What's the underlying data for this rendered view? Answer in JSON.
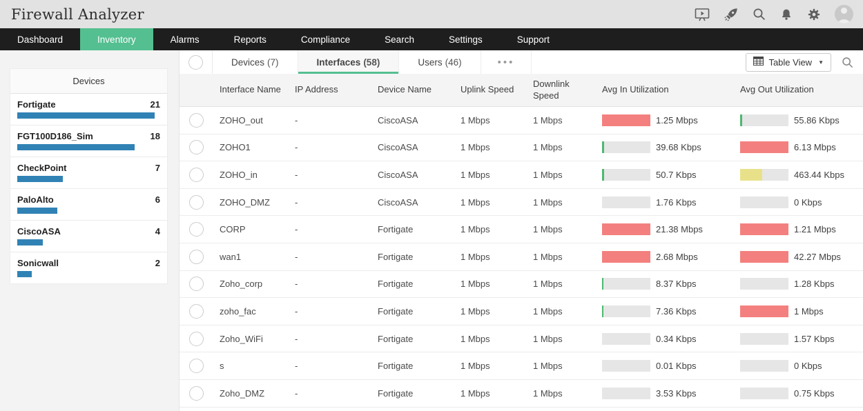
{
  "app": {
    "title": "Firewall Analyzer"
  },
  "topbar": {
    "icons": [
      "presentation",
      "rocket",
      "search",
      "bell",
      "gear"
    ],
    "avatar": "user-avatar"
  },
  "nav": {
    "items": [
      {
        "label": "Dashboard",
        "active": false
      },
      {
        "label": "Inventory",
        "active": true
      },
      {
        "label": "Alarms",
        "active": false
      },
      {
        "label": "Reports",
        "active": false
      },
      {
        "label": "Compliance",
        "active": false
      },
      {
        "label": "Search",
        "active": false
      },
      {
        "label": "Settings",
        "active": false
      },
      {
        "label": "Support",
        "active": false
      }
    ]
  },
  "sidebar": {
    "title": "Devices",
    "max_count": 21,
    "items": [
      {
        "name": "Fortigate",
        "count": "21",
        "pct": 96
      },
      {
        "name": "FGT100D186_Sim",
        "count": "18",
        "pct": 82
      },
      {
        "name": "CheckPoint",
        "count": "7",
        "pct": 32
      },
      {
        "name": "PaloAlto",
        "count": "6",
        "pct": 28
      },
      {
        "name": "CiscoASA",
        "count": "4",
        "pct": 18
      },
      {
        "name": "Sonicwall",
        "count": "2",
        "pct": 10
      }
    ]
  },
  "tabs": {
    "items": [
      {
        "label": "Devices",
        "count": "(7)",
        "active": false
      },
      {
        "label": "Interfaces",
        "count": "(58)",
        "active": true
      },
      {
        "label": "Users",
        "count": "(46)",
        "active": false
      }
    ],
    "more_label": "•••"
  },
  "toolbar": {
    "view_label": "Table View"
  },
  "table": {
    "columns": [
      "Interface Name",
      "IP Address",
      "Device Name",
      "Uplink Speed",
      "Downlink Speed",
      "Avg In Utilization",
      "Avg Out Utilization"
    ],
    "rows": [
      {
        "interface": "ZOHO_out",
        "ip": "-",
        "device": "CiscoASA",
        "uplink": "1 Mbps",
        "downlink": "1 Mbps",
        "in": {
          "value": "1.25 Mbps",
          "fill": 100,
          "color": "red"
        },
        "out": {
          "value": "55.86 Kbps",
          "fill": 4,
          "color": "green"
        }
      },
      {
        "interface": "ZOHO1",
        "ip": "-",
        "device": "CiscoASA",
        "uplink": "1 Mbps",
        "downlink": "1 Mbps",
        "in": {
          "value": "39.68 Kbps",
          "fill": 4,
          "color": "green"
        },
        "out": {
          "value": "6.13 Mbps",
          "fill": 100,
          "color": "red"
        }
      },
      {
        "interface": "ZOHO_in",
        "ip": "-",
        "device": "CiscoASA",
        "uplink": "1 Mbps",
        "downlink": "1 Mbps",
        "in": {
          "value": "50.7 Kbps",
          "fill": 4,
          "color": "green"
        },
        "out": {
          "value": "463.44 Kbps",
          "fill": 46,
          "color": "yellow"
        }
      },
      {
        "interface": "ZOHO_DMZ",
        "ip": "-",
        "device": "CiscoASA",
        "uplink": "1 Mbps",
        "downlink": "1 Mbps",
        "in": {
          "value": "1.76 Kbps",
          "fill": 0,
          "color": "none"
        },
        "out": {
          "value": "0 Kbps",
          "fill": 0,
          "color": "none"
        }
      },
      {
        "interface": "CORP",
        "ip": "-",
        "device": "Fortigate",
        "uplink": "1 Mbps",
        "downlink": "1 Mbps",
        "in": {
          "value": "21.38 Mbps",
          "fill": 100,
          "color": "red"
        },
        "out": {
          "value": "1.21 Mbps",
          "fill": 100,
          "color": "red"
        }
      },
      {
        "interface": "wan1",
        "ip": "-",
        "device": "Fortigate",
        "uplink": "1 Mbps",
        "downlink": "1 Mbps",
        "in": {
          "value": "2.68 Mbps",
          "fill": 100,
          "color": "red"
        },
        "out": {
          "value": "42.27 Mbps",
          "fill": 100,
          "color": "red"
        }
      },
      {
        "interface": "Zoho_corp",
        "ip": "-",
        "device": "Fortigate",
        "uplink": "1 Mbps",
        "downlink": "1 Mbps",
        "in": {
          "value": "8.37 Kbps",
          "fill": 3,
          "color": "green"
        },
        "out": {
          "value": "1.28 Kbps",
          "fill": 0,
          "color": "none"
        }
      },
      {
        "interface": "zoho_fac",
        "ip": "-",
        "device": "Fortigate",
        "uplink": "1 Mbps",
        "downlink": "1 Mbps",
        "in": {
          "value": "7.36 Kbps",
          "fill": 3,
          "color": "green"
        },
        "out": {
          "value": "1 Mbps",
          "fill": 100,
          "color": "red"
        }
      },
      {
        "interface": "Zoho_WiFi",
        "ip": "-",
        "device": "Fortigate",
        "uplink": "1 Mbps",
        "downlink": "1 Mbps",
        "in": {
          "value": "0.34 Kbps",
          "fill": 0,
          "color": "none"
        },
        "out": {
          "value": "1.57 Kbps",
          "fill": 0,
          "color": "none"
        }
      },
      {
        "interface": "s",
        "ip": "-",
        "device": "Fortigate",
        "uplink": "1 Mbps",
        "downlink": "1 Mbps",
        "in": {
          "value": "0.01 Kbps",
          "fill": 0,
          "color": "none"
        },
        "out": {
          "value": "0 Kbps",
          "fill": 0,
          "color": "none"
        }
      },
      {
        "interface": "Zoho_DMZ",
        "ip": "-",
        "device": "Fortigate",
        "uplink": "1 Mbps",
        "downlink": "1 Mbps",
        "in": {
          "value": "3.53 Kbps",
          "fill": 0,
          "color": "none"
        },
        "out": {
          "value": "0.75 Kbps",
          "fill": 0,
          "color": "none"
        }
      }
    ]
  },
  "colors": {
    "accent_green": "#54bf90",
    "nav_bg": "#1e1e1e",
    "device_bar_blue": "#3082b5",
    "util_track": "#e6e6e6",
    "bar_colors": {
      "red": "#f3807e",
      "yellow": "#e9e18a",
      "green": "#4db96f"
    }
  }
}
